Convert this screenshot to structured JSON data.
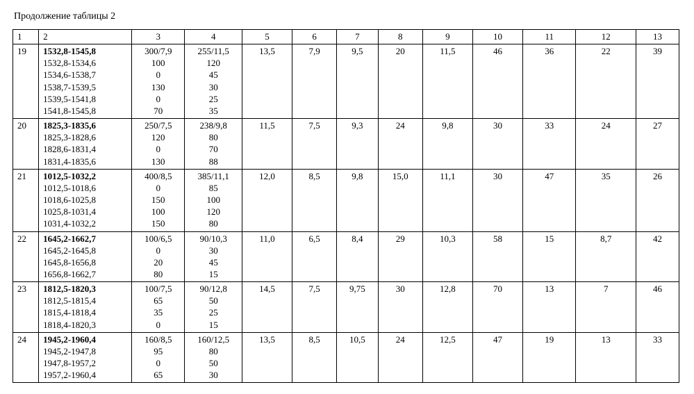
{
  "caption": "Продолжение таблицы 2",
  "header": [
    "1",
    "2",
    "3",
    "4",
    "5",
    "6",
    "7",
    "8",
    "9",
    "10",
    "11",
    "12",
    "13"
  ],
  "rows": [
    {
      "c1": "19",
      "c2": [
        "**1532,8-1545,8**",
        "1532,8-1534,6",
        "1534,6-1538,7",
        "1538,7-1539,5",
        "1539,5-1541,8",
        "1541,8-1545,8"
      ],
      "c3": [
        "300/7,9",
        "100",
        "0",
        "130",
        "0",
        "70"
      ],
      "c4": [
        "255/11,5",
        "120",
        "45",
        "30",
        "25",
        "35"
      ],
      "c5": "13,5",
      "c6": "7,9",
      "c7": "9,5",
      "c8": "20",
      "c9": "11,5",
      "c10": "46",
      "c11": "36",
      "c12": "22",
      "c13": "39"
    },
    {
      "c1": "20",
      "c2": [
        "**1825,3-1835,6**",
        "1825,3-1828,6",
        "1828,6-1831,4",
        "1831,4-1835,6"
      ],
      "c3": [
        "250/7,5",
        "120",
        "0",
        "130"
      ],
      "c4": [
        "238/9,8",
        "80",
        "70",
        "88"
      ],
      "c5": "11,5",
      "c6": "7,5",
      "c7": "9,3",
      "c8": "24",
      "c9": "9,8",
      "c10": "30",
      "c11": "33",
      "c12": "24",
      "c13": "27"
    },
    {
      "c1": "21",
      "c2": [
        "**1012,5-1032,2**",
        "1012,5-1018,6",
        "1018,6-1025,8",
        "1025,8-1031,4",
        "1031,4-1032,2"
      ],
      "c3": [
        "400/8,5",
        "0",
        "150",
        "100",
        "150"
      ],
      "c4": [
        "385/11,1",
        "85",
        "100",
        "120",
        "80"
      ],
      "c5": "12,0",
      "c6": "8,5",
      "c7": "9,8",
      "c8": "15,0",
      "c9": "11,1",
      "c10": "30",
      "c11": "47",
      "c12": "35",
      "c13": "26"
    },
    {
      "c1": "22",
      "c2": [
        "**1645,2-1662,7**",
        "1645,2-1645,8",
        "1645,8-1656,8",
        "1656,8-1662,7"
      ],
      "c3": [
        "100/6,5",
        "0",
        "20",
        "80"
      ],
      "c4": [
        "90/10,3",
        "30",
        "45",
        "15"
      ],
      "c5": "11,0",
      "c6": "6,5",
      "c7": "8,4",
      "c8": "29",
      "c9": "10,3",
      "c10": "58",
      "c11": "15",
      "c12": "8,7",
      "c13": "42"
    },
    {
      "c1": "23",
      "c2": [
        "**1812,5-1820,3**",
        "1812,5-1815,4",
        "1815,4-1818,4",
        "1818,4-1820,3"
      ],
      "c3": [
        "100/7,5",
        "65",
        "35",
        "0"
      ],
      "c4": [
        "90/12,8",
        "50",
        "25",
        "15"
      ],
      "c5": "14,5",
      "c6": "7,5",
      "c7": "9,75",
      "c8": "30",
      "c9": "12,8",
      "c10": "70",
      "c11": "13",
      "c12": "7",
      "c13": "46"
    },
    {
      "c1": "24",
      "c2": [
        "**1945,2-1960,4**",
        "1945,2-1947,8",
        "1947,8-1957,2",
        "1957,2-1960,4"
      ],
      "c3": [
        "160/8,5",
        "95",
        "0",
        "65"
      ],
      "c4": [
        "160/12,5",
        "80",
        "50",
        "30"
      ],
      "c5": "13,5",
      "c6": "8,5",
      "c7": "10,5",
      "c8": "24",
      "c9": "12,5",
      "c10": "47",
      "c11": "19",
      "c12": "13",
      "c13": "33"
    }
  ]
}
